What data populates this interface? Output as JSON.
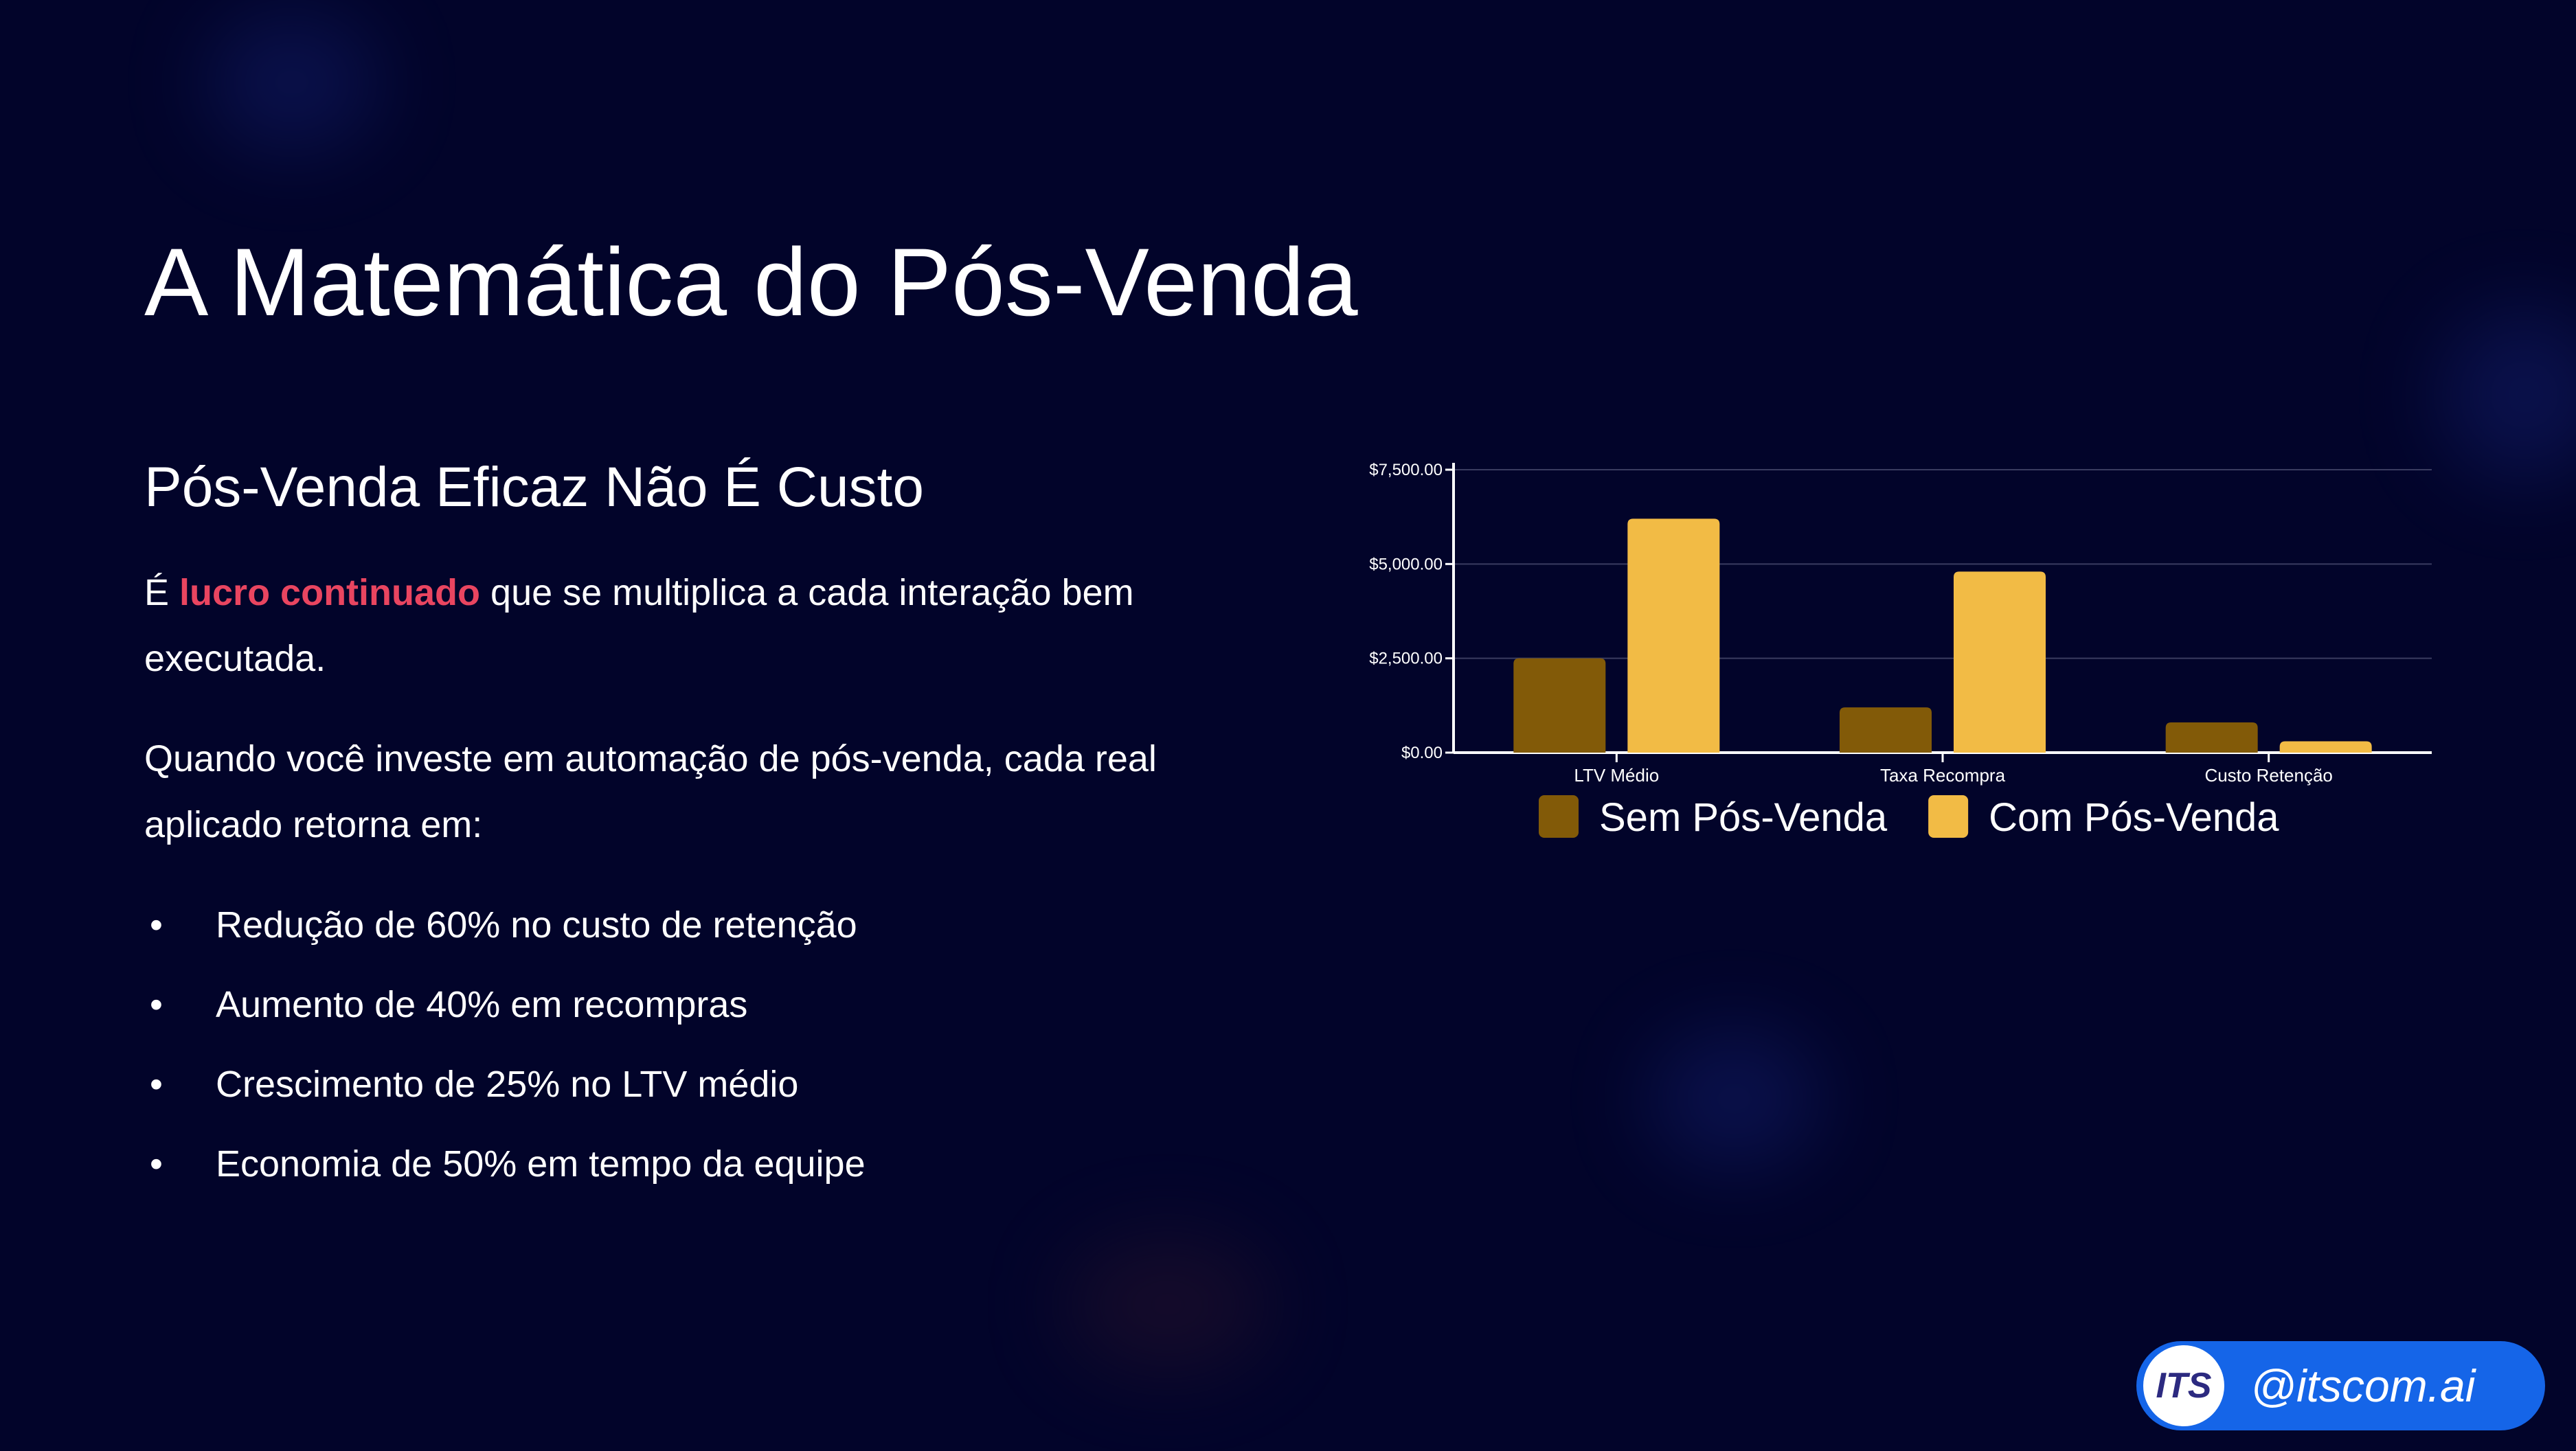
{
  "slide": {
    "title": "A Matemática do Pós-Venda",
    "subtitle": "Pós-Venda Eficaz Não É Custo",
    "paragraph1": {
      "prefix": "É ",
      "highlight": "lucro continuado",
      "suffix": " que se multiplica a cada interação bem executada."
    },
    "paragraph2": "Quando você investe em automação de pós-venda, cada real aplicado retorna em:",
    "bullets": [
      "Redução de 60% no custo de retenção",
      "Aumento de 40% em recompras",
      "Crescimento de 25% no LTV médio",
      "Economia de 50% em tempo da equipe"
    ],
    "highlight_color": "#e94560"
  },
  "chart_data": {
    "type": "bar",
    "categories": [
      "LTV Médio",
      "Taxa Recompra",
      "Custo Retenção"
    ],
    "series": [
      {
        "name": "Sem Pós-Venda",
        "values": [
          2500,
          1200,
          800
        ],
        "color": "#825a08"
      },
      {
        "name": "Com Pós-Venda",
        "values": [
          6200,
          4800,
          300
        ],
        "color": "#f2bb45"
      }
    ],
    "yticks": [
      "$0.00",
      "$2,500.00",
      "$5,000.00",
      "$7,500.00"
    ],
    "ytick_values": [
      0,
      2500,
      5000,
      7500
    ],
    "ylim": [
      0,
      7500
    ],
    "grid": true,
    "legend": "bottom"
  },
  "badge": {
    "logo_text": "ITS",
    "handle": "@itscom.ai",
    "color": "#1565e8"
  }
}
